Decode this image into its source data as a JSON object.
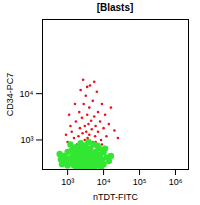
{
  "chart_data": {
    "type": "scatter",
    "title": "[Blasts]",
    "x_label": "nTDT-FITC",
    "y_label": "CD34-PC7",
    "log": true,
    "grid": false,
    "xlim": [
      200,
      2300000
    ],
    "ylim": [
      230,
      400000
    ],
    "xticks": [
      {
        "value": 1000,
        "label": "10³"
      },
      {
        "value": 10000,
        "label": "10⁴"
      },
      {
        "value": 100000,
        "label": "10⁵"
      },
      {
        "value": 1000000,
        "label": "10⁶"
      }
    ],
    "yticks": [
      {
        "value": 1000,
        "label": "10³"
      },
      {
        "value": 10000,
        "label": "10⁴"
      }
    ],
    "series": [
      {
        "color": "#e8131b",
        "points": [
          [
            1000,
            900
          ],
          [
            1300,
            1500
          ],
          [
            1500,
            1100
          ],
          [
            1700,
            2500
          ],
          [
            1800,
            800
          ],
          [
            2000,
            1200
          ],
          [
            2100,
            4000
          ],
          [
            2200,
            1800
          ],
          [
            2400,
            900
          ],
          [
            2500,
            3000
          ],
          [
            2600,
            1400
          ],
          [
            2800,
            6000
          ],
          [
            3000,
            2000
          ],
          [
            3000,
            1000
          ],
          [
            3200,
            9000
          ],
          [
            3300,
            1500
          ],
          [
            3500,
            3500
          ],
          [
            3600,
            1100
          ],
          [
            3800,
            2200
          ],
          [
            4000,
            5000
          ],
          [
            4000,
            1300
          ],
          [
            4200,
            15000
          ],
          [
            4500,
            2600
          ],
          [
            4700,
            1700
          ],
          [
            5000,
            900
          ],
          [
            5000,
            7000
          ],
          [
            5500,
            3200
          ],
          [
            5800,
            1200
          ],
          [
            6000,
            2000
          ],
          [
            6500,
            11000
          ],
          [
            7000,
            4000
          ],
          [
            7000,
            1500
          ],
          [
            8000,
            2500
          ],
          [
            8500,
            1000
          ],
          [
            9000,
            6000
          ],
          [
            10000,
            1800
          ],
          [
            11000,
            3500
          ],
          [
            12000,
            1200
          ],
          [
            14000,
            2200
          ],
          [
            16000,
            5000
          ],
          [
            20000,
            1600
          ],
          [
            900,
            1300
          ],
          [
            1200,
            2000
          ],
          [
            1600,
            6000
          ],
          [
            2300,
            12000
          ],
          [
            2700,
            20000
          ],
          [
            3500,
            14000
          ],
          [
            5500,
            18000
          ],
          [
            1100,
            3500
          ],
          [
            6000,
            900
          ],
          [
            3800,
            700
          ],
          [
            2000,
            700
          ],
          [
            9000,
            800
          ],
          [
            1400,
            700
          ],
          [
            25000,
            1100
          ]
        ]
      },
      {
        "color": "#33e633",
        "points": [
          [
            700,
            300
          ],
          [
            800,
            450
          ],
          [
            900,
            350
          ],
          [
            1000,
            280
          ],
          [
            1000,
            550
          ],
          [
            1100,
            400
          ],
          [
            1200,
            320
          ],
          [
            1300,
            600
          ],
          [
            1400,
            450
          ],
          [
            1500,
            280
          ],
          [
            1500,
            380
          ],
          [
            1600,
            520
          ],
          [
            1700,
            700
          ],
          [
            1800,
            330
          ],
          [
            1900,
            450
          ],
          [
            2000,
            260
          ],
          [
            2000,
            600
          ],
          [
            2100,
            380
          ],
          [
            2200,
            500
          ],
          [
            2400,
            300
          ],
          [
            2500,
            420
          ],
          [
            2600,
            650
          ],
          [
            2800,
            350
          ],
          [
            3000,
            280
          ],
          [
            3000,
            500
          ],
          [
            3100,
            760
          ],
          [
            3200,
            420
          ],
          [
            3400,
            330
          ],
          [
            3500,
            580
          ],
          [
            3700,
            460
          ],
          [
            4000,
            260
          ],
          [
            4000,
            380
          ],
          [
            4200,
            650
          ],
          [
            4500,
            500
          ],
          [
            4800,
            320
          ],
          [
            5000,
            430
          ],
          [
            5200,
            800
          ],
          [
            5500,
            360
          ],
          [
            6000,
            550
          ],
          [
            6000,
            280
          ],
          [
            6500,
            420
          ],
          [
            7000,
            330
          ],
          [
            7500,
            650
          ],
          [
            8000,
            480
          ],
          [
            9000,
            380
          ],
          [
            10000,
            300
          ],
          [
            10000,
            550
          ],
          [
            12000,
            420
          ],
          [
            14000,
            350
          ],
          [
            600,
            500
          ],
          [
            650,
            380
          ],
          [
            1200,
            800
          ],
          [
            2300,
            850
          ],
          [
            3800,
            900
          ],
          [
            1800,
            250
          ],
          [
            2800,
            250
          ],
          [
            5500,
            250
          ],
          [
            8500,
            260
          ],
          [
            3300,
            650
          ],
          [
            2700,
            550
          ],
          [
            1600,
            380
          ],
          [
            4400,
            300
          ],
          [
            6800,
            750
          ],
          [
            11000,
            650
          ],
          [
            16000,
            450
          ]
        ]
      }
    ]
  }
}
